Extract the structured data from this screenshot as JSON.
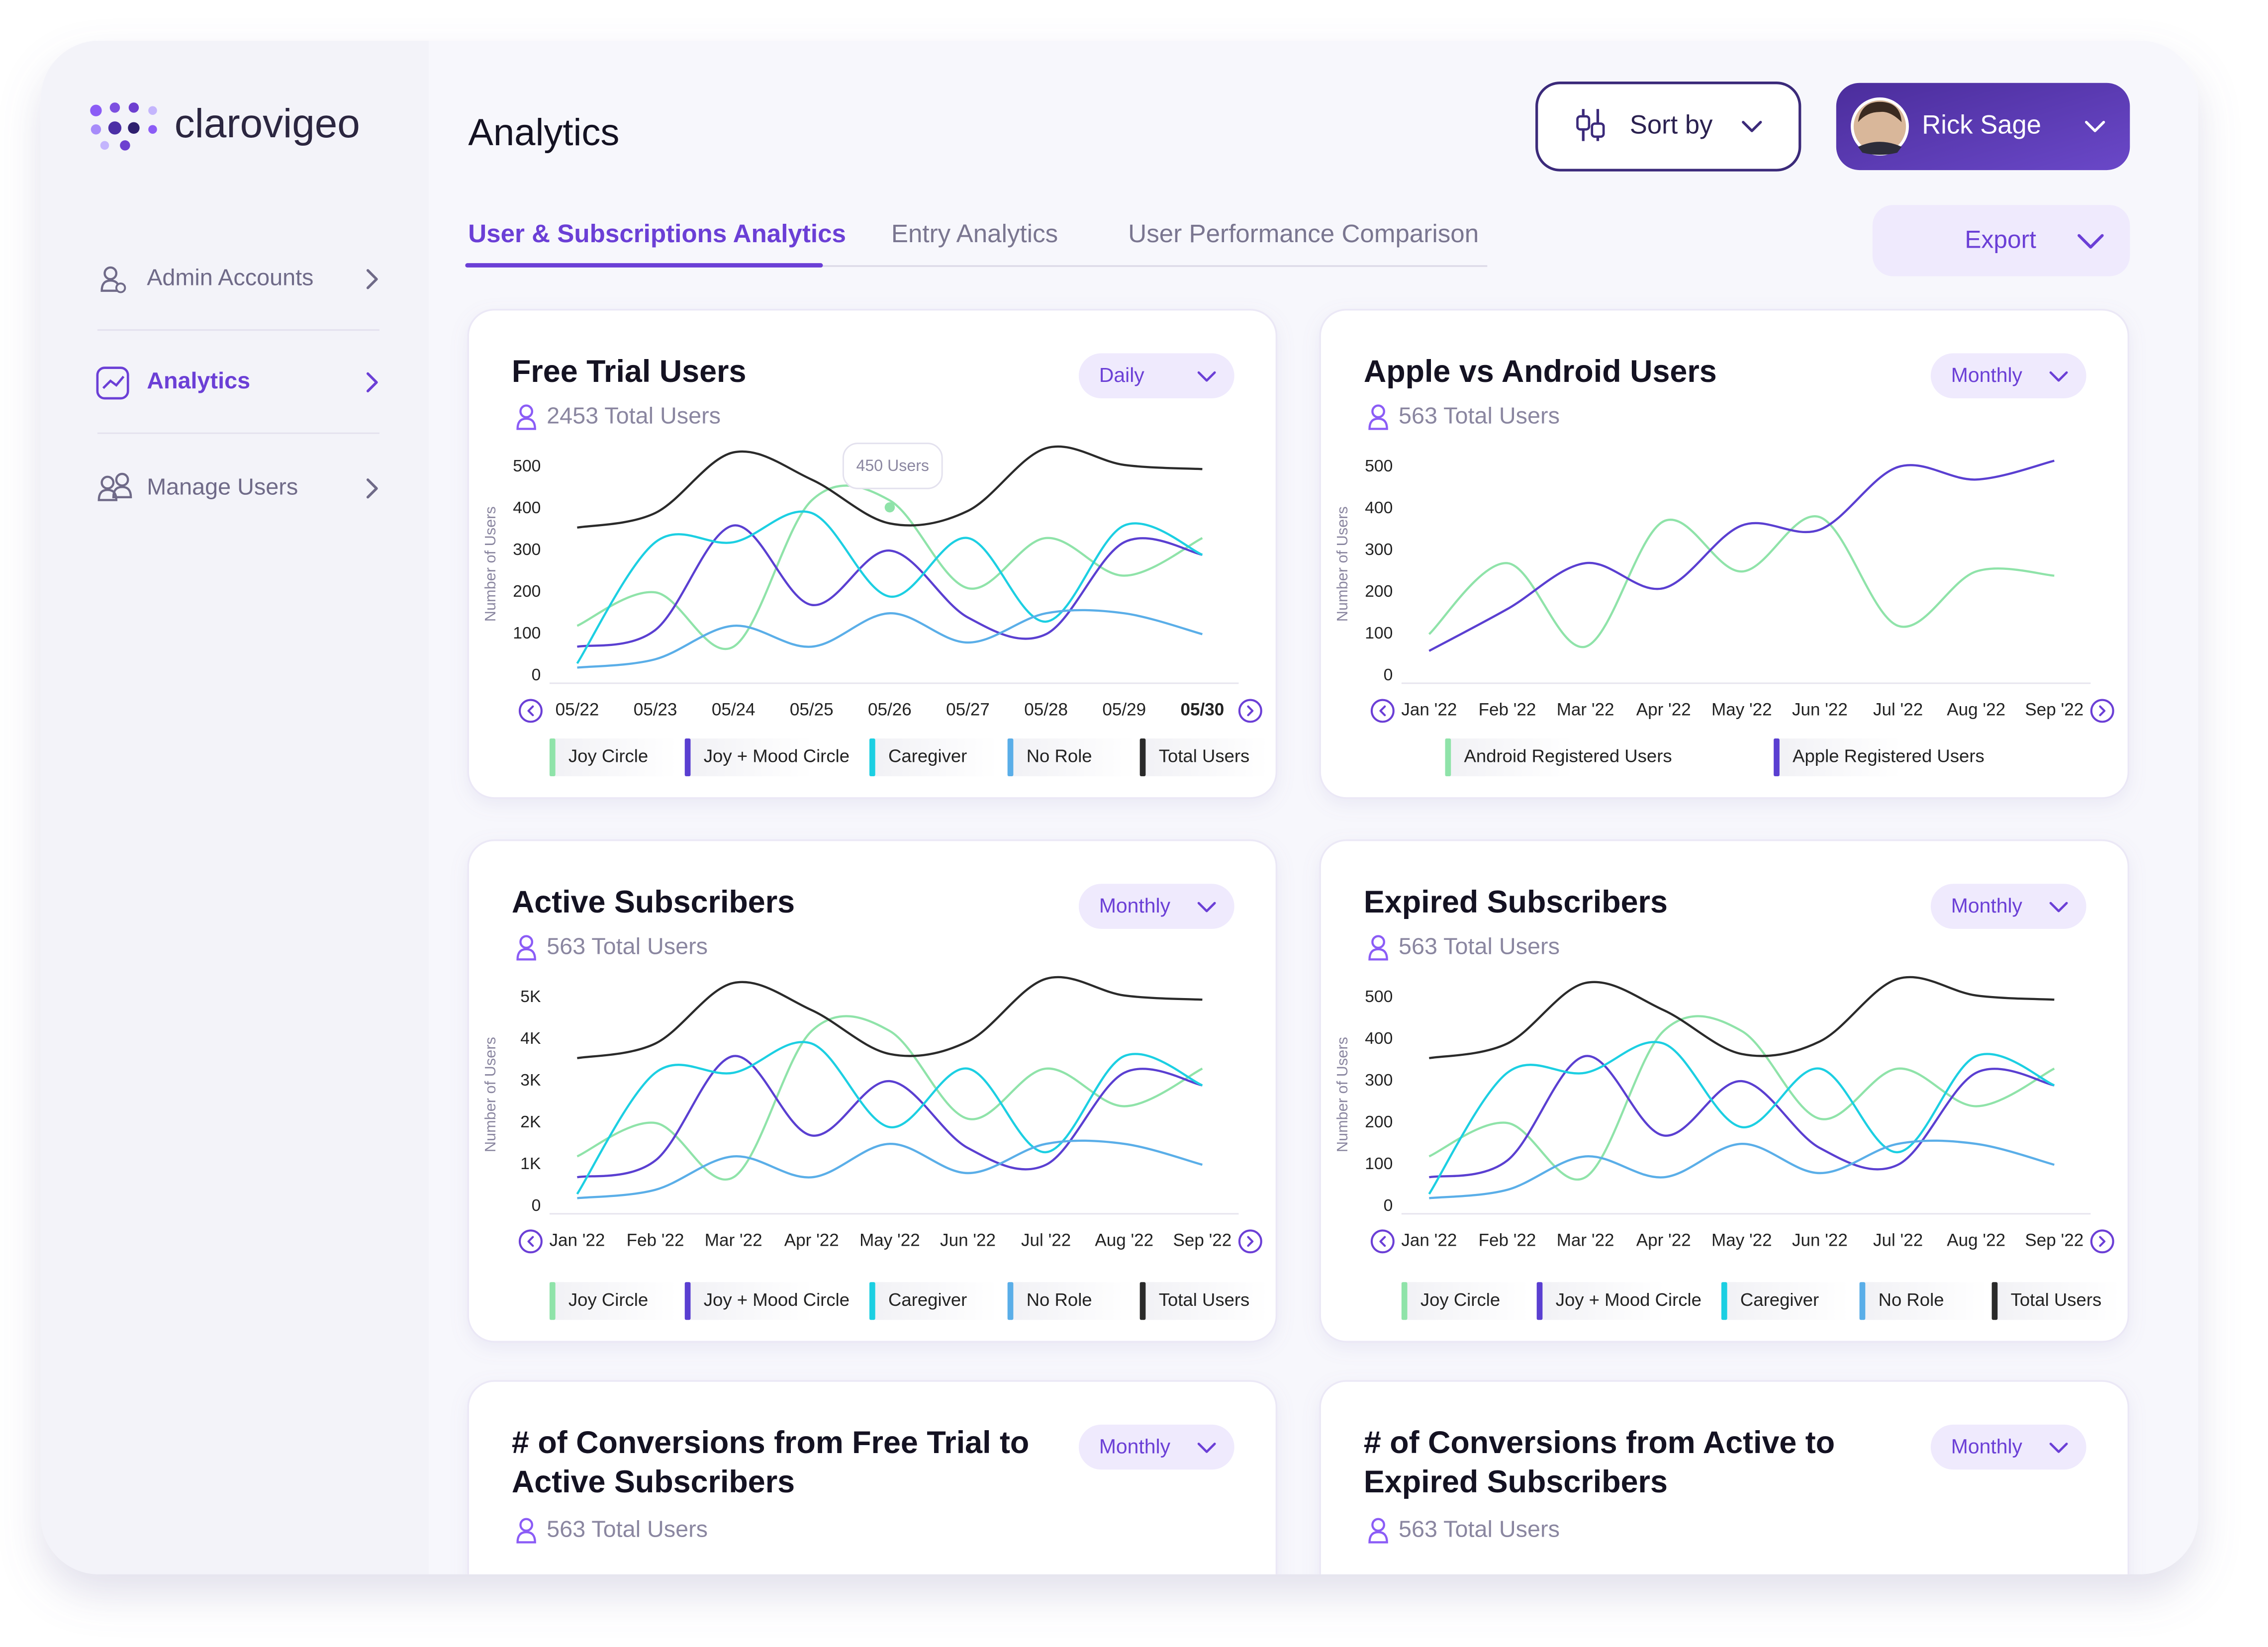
{
  "sidebar": {
    "brand": "clarovigeo",
    "nav": [
      {
        "label": "Admin Accounts",
        "active": false
      },
      {
        "label": "Analytics",
        "active": true
      },
      {
        "label": "Manage Users",
        "active": false
      }
    ]
  },
  "header": {
    "title": "Analytics",
    "sort": "Sort by",
    "user": "Rick Sage",
    "export": "Export"
  },
  "tabs": [
    "User & Subscriptions Analytics",
    "Entry Analytics",
    "User Performance Comparison"
  ],
  "cards": [
    {
      "title": [
        "Free Trial Users"
      ],
      "period": "Daily",
      "total": "2453 Total Users",
      "chart": {
        "type": "line",
        "ylabel": "Number of Users",
        "tooltip": "450 Users",
        "categories": [
          "05/22",
          "05/23",
          "05/24",
          "05/25",
          "05/26",
          "05/27",
          "05/28",
          "05/29",
          "05/30"
        ],
        "ylim": [
          0,
          560
        ],
        "yticks": [
          0,
          100,
          200,
          300,
          400,
          500
        ],
        "series": [
          {
            "name": "Joy Circle",
            "color": "#8fe3a9",
            "values": [
              120,
              200,
              70,
              420,
              420,
              210,
              330,
              240,
              330
            ]
          },
          {
            "name": "Joy + Mood Circle",
            "color": "#5a3fd1",
            "values": [
              70,
              110,
              360,
              170,
              300,
              140,
              100,
              320,
              290
            ]
          },
          {
            "name": "Caregiver",
            "color": "#1ccfe2",
            "values": [
              30,
              320,
              320,
              390,
              190,
              330,
              130,
              360,
              290
            ]
          },
          {
            "name": "No Role",
            "color": "#5aaee8",
            "values": [
              20,
              40,
              120,
              70,
              150,
              80,
              150,
              150,
              100
            ]
          },
          {
            "name": "Total Users",
            "color": "#2a2a2a",
            "values": [
              355,
              390,
              535,
              470,
              365,
              395,
              545,
              505,
              495
            ]
          }
        ]
      }
    },
    {
      "title": [
        "Apple vs Android Users"
      ],
      "period": "Monthly",
      "total": "563 Total Users",
      "chart": {
        "type": "line",
        "ylabel": "Number of Users",
        "categories": [
          "Jan '22",
          "Feb '22",
          "Mar '22",
          "Apr '22",
          "May '22",
          "Jun '22",
          "Jul '22",
          "Aug '22",
          "Sep '22"
        ],
        "ylim": [
          0,
          560
        ],
        "yticks": [
          0,
          100,
          200,
          300,
          400,
          500
        ],
        "series": [
          {
            "name": "Android Registered Users",
            "color": "#8fe3a9",
            "values": [
              100,
              270,
              70,
              370,
              250,
              380,
              120,
              250,
              240
            ]
          },
          {
            "name": "Apple Registered Users",
            "color": "#5a3fd1",
            "values": [
              60,
              160,
              270,
              210,
              360,
              350,
              500,
              470,
              515
            ]
          }
        ]
      }
    },
    {
      "title": [
        "Active Subscribers"
      ],
      "period": "Monthly",
      "total": "563 Total Users",
      "chart": {
        "type": "line",
        "ylabel": "Number of Users",
        "categories": [
          "Jan '22",
          "Feb '22",
          "Mar '22",
          "Apr '22",
          "May '22",
          "Jun '22",
          "Jul '22",
          "Aug '22",
          "Sep '22"
        ],
        "ylim": [
          0,
          5600
        ],
        "yticks": [
          0,
          {
            "value": 1000,
            "label": "1K"
          },
          {
            "value": 2000,
            "label": "2K"
          },
          {
            "value": 3000,
            "label": "3K"
          },
          {
            "value": 4000,
            "label": "4K"
          },
          {
            "value": 5000,
            "label": "5K"
          }
        ],
        "series": [
          {
            "name": "Joy Circle",
            "color": "#8fe3a9",
            "values": [
              1200,
              2000,
              700,
              4200,
              4200,
              2100,
              3300,
              2400,
              3300
            ]
          },
          {
            "name": "Joy + Mood Circle",
            "color": "#5a3fd1",
            "values": [
              700,
              1100,
              3600,
              1700,
              3000,
              1400,
              1000,
              3200,
              2900
            ]
          },
          {
            "name": "Caregiver",
            "color": "#1ccfe2",
            "values": [
              300,
              3200,
              3200,
              3900,
              1900,
              3300,
              1300,
              3600,
              2900
            ]
          },
          {
            "name": "No Role",
            "color": "#5aaee8",
            "values": [
              200,
              400,
              1200,
              700,
              1500,
              800,
              1500,
              1500,
              1000
            ]
          },
          {
            "name": "Total Users",
            "color": "#2a2a2a",
            "values": [
              3550,
              3900,
              5350,
              4700,
              3650,
              3950,
              5450,
              5050,
              4950
            ]
          }
        ]
      }
    },
    {
      "title": [
        "Expired Subscribers"
      ],
      "period": "Monthly",
      "total": "563 Total Users",
      "chart": {
        "type": "line",
        "ylabel": "Number of Users",
        "categories": [
          "Jan '22",
          "Feb '22",
          "Mar '22",
          "Apr '22",
          "May '22",
          "Jun '22",
          "Jul '22",
          "Aug '22",
          "Sep '22"
        ],
        "ylim": [
          0,
          560
        ],
        "yticks": [
          0,
          100,
          200,
          300,
          400,
          500
        ],
        "series": [
          {
            "name": "Joy Circle",
            "color": "#8fe3a9",
            "values": [
              120,
              200,
              70,
              420,
              420,
              210,
              330,
              240,
              330
            ]
          },
          {
            "name": "Joy + Mood Circle",
            "color": "#5a3fd1",
            "values": [
              70,
              110,
              360,
              170,
              300,
              140,
              100,
              320,
              290
            ]
          },
          {
            "name": "Caregiver",
            "color": "#1ccfe2",
            "values": [
              30,
              320,
              320,
              390,
              190,
              330,
              130,
              360,
              290
            ]
          },
          {
            "name": "No Role",
            "color": "#5aaee8",
            "values": [
              20,
              40,
              120,
              70,
              150,
              80,
              150,
              150,
              100
            ]
          },
          {
            "name": "Total Users",
            "color": "#2a2a2a",
            "values": [
              355,
              390,
              535,
              470,
              365,
              395,
              545,
              505,
              495
            ]
          }
        ]
      }
    },
    {
      "title": [
        "# of Conversions from Free Trial to",
        "Active Subscribers"
      ],
      "period": "Monthly",
      "total": "563 Total Users"
    },
    {
      "title": [
        "# of Conversions from Active to",
        "Expired Subscribers"
      ],
      "period": "Monthly",
      "total": "563 Total Users"
    }
  ]
}
